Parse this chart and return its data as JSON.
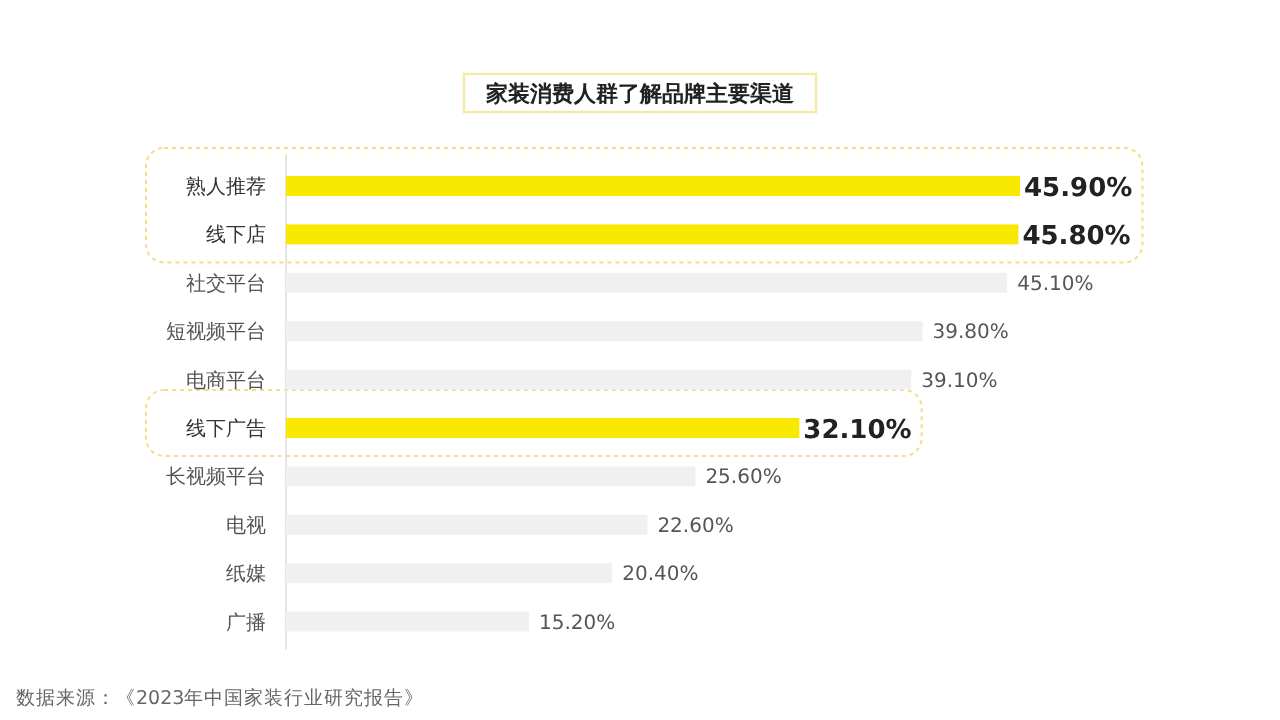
{
  "chart_data": {
    "type": "bar",
    "orientation": "horizontal",
    "title": "家装消费人群了解品牌主要渠道",
    "categories": [
      "熟人推荐",
      "线下店",
      "社交平台",
      "短视频平台",
      "电商平台",
      "线下广告",
      "长视频平台",
      "电视",
      "纸媒",
      "广播"
    ],
    "values": [
      45.9,
      45.8,
      45.1,
      39.8,
      39.1,
      32.1,
      25.6,
      22.6,
      20.4,
      15.2
    ],
    "value_labels": [
      "45.90%",
      "45.80%",
      "45.10%",
      "39.80%",
      "39.10%",
      "32.10%",
      "25.60%",
      "22.60%",
      "20.40%",
      "15.20%"
    ],
    "colors": [
      "#f9e900",
      "#f9e900",
      "#f0f0f0",
      "#f0f0f0",
      "#f0f0f0",
      "#f9e900",
      "#f0f0f0",
      "#f0f0f0",
      "#f0f0f0",
      "#f0f0f0"
    ],
    "annotations": [
      "数据来源：《2023年中国家装行业研究报告》"
    ]
  }
}
